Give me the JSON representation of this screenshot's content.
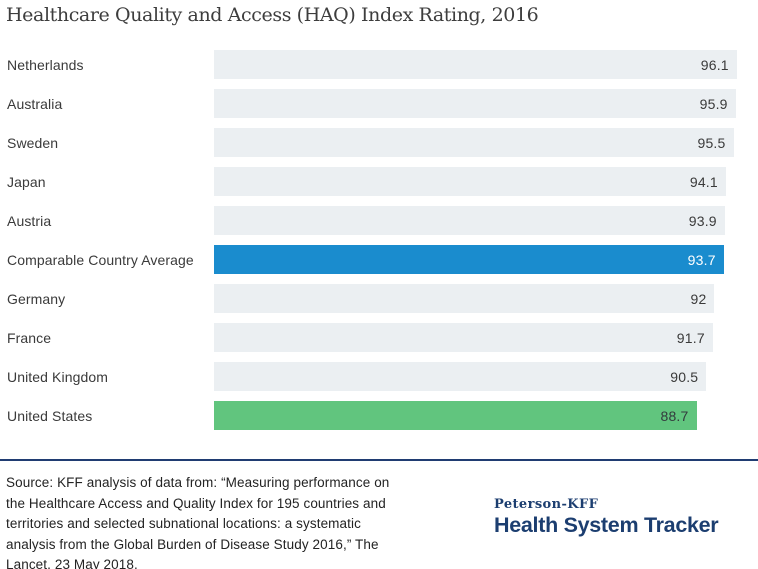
{
  "chart": {
    "title": "Healthcare Quality and Access (HAQ) Index Rating, 2016"
  },
  "chart_data": {
    "type": "bar",
    "orientation": "horizontal",
    "title": "Healthcare Quality and Access (HAQ) Index Rating, 2016",
    "xlabel": "",
    "ylabel": "",
    "xlim": [
      0,
      100
    ],
    "grid": false,
    "legend": false,
    "categories": [
      "Netherlands",
      "Australia",
      "Sweden",
      "Japan",
      "Austria",
      "Comparable Country Average",
      "Germany",
      "France",
      "United Kingdom",
      "United States"
    ],
    "values": [
      96.1,
      95.9,
      95.5,
      94.1,
      93.9,
      93.7,
      92,
      91.7,
      90.5,
      88.7
    ],
    "value_labels": [
      "96.1",
      "95.9",
      "95.5",
      "94.1",
      "93.9",
      "93.7",
      "92",
      "91.7",
      "90.5",
      "88.7"
    ],
    "bar_styles": [
      "default",
      "default",
      "default",
      "default",
      "default",
      "highlight_blue",
      "default",
      "default",
      "default",
      "highlight_green"
    ],
    "colors": {
      "default": "#ebeff2",
      "highlight_blue": "#1a8cce",
      "highlight_green": "#61c57e"
    },
    "value_text_colors": {
      "default": "#3a3a3a",
      "highlight_blue": "#ffffff",
      "highlight_green": "#333a3d"
    }
  },
  "footer": {
    "divider_color": "#203c72",
    "source_text": "Source: KFF analysis of data from: “Measuring performance on\nthe Healthcare Access and Quality Index for 195 countries and\nterritories and selected subnational locations: a systematic\nanalysis from the Global Burden of Disease Study 2016,” The\nLancet, 23 May 2018.",
    "logo": {
      "top": "Peterson-KFF",
      "bottom": "Health System Tracker",
      "color": "#1c3e70"
    }
  }
}
